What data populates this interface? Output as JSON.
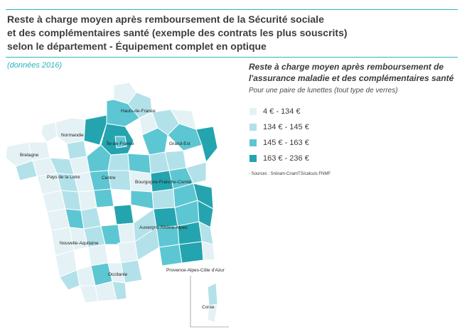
{
  "title_lines": [
    "Reste à charge moyen après remboursement de la Sécurité sociale",
    "et des complémentaires santé (exemple des contrats les plus souscrits)",
    "selon le département - Équipement complet en optique"
  ],
  "data_year": "(données 2016)",
  "legend": {
    "title_lines": [
      "Reste à charge moyen après remboursement de",
      "l'assurance maladie et des complémentaires santé"
    ],
    "subtitle": "Pour une paire de lunettes (tout type de verres)",
    "items": [
      {
        "label": "4 € - 134 €",
        "color": "#e4f2f5"
      },
      {
        "label": "134 € - 145 €",
        "color": "#b2e1ea"
      },
      {
        "label": "145 € - 163 €",
        "color": "#5dc6d3"
      },
      {
        "label": "163 € - 236 €",
        "color": "#24a4ae"
      }
    ],
    "sources": "Sources : Sniiram-CnamTS/calculs FNMF"
  },
  "regions": [
    {
      "name": "Hauts-de-France"
    },
    {
      "name": "Normandie"
    },
    {
      "name": "Île-de-France"
    },
    {
      "name": "Grand-Est"
    },
    {
      "name": "Bretagne"
    },
    {
      "name": "Pays de la Loire"
    },
    {
      "name": "Centre"
    },
    {
      "name": "Bourgogne-Franche-Comté"
    },
    {
      "name": "Nouvelle-Aquitaine"
    },
    {
      "name": "Auvergne-Rhône-Alpes"
    },
    {
      "name": "Occitanie"
    },
    {
      "name": "Provence-Alpes-Côte d'Azur"
    },
    {
      "name": "Corse"
    }
  ]
}
